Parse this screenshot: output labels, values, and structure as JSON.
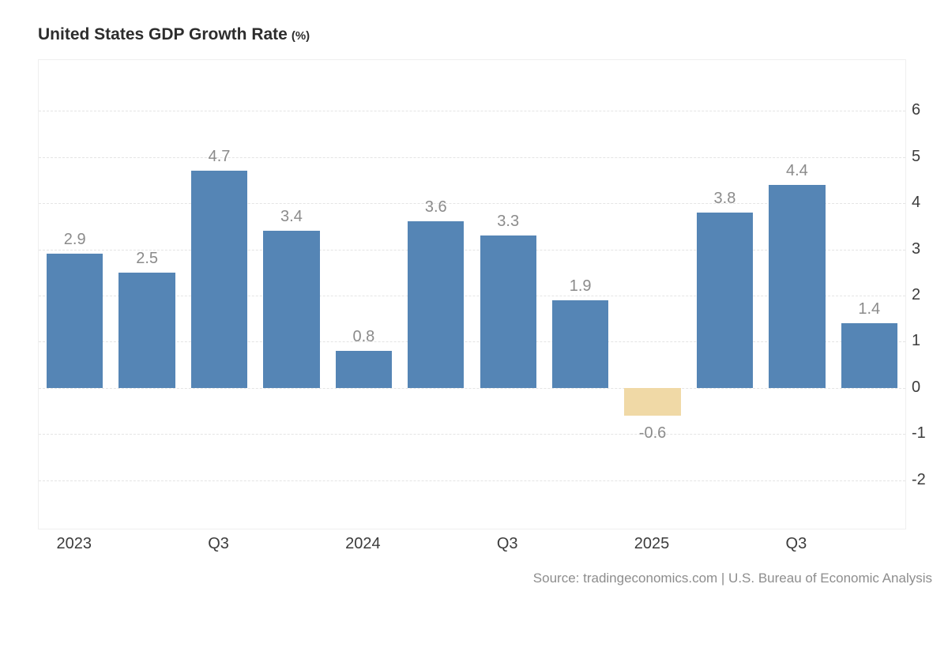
{
  "chart_data": {
    "type": "bar",
    "title": "United States GDP Growth Rate",
    "title_suffix": "(%)",
    "source": "Source: tradingeconomics.com | U.S. Bureau of Economic Analysis",
    "values": [
      2.9,
      2.5,
      4.7,
      3.4,
      0.8,
      3.6,
      3.3,
      1.9,
      -0.6,
      3.8,
      4.4,
      1.4
    ],
    "bar_labels": [
      "2.9",
      "2.5",
      "4.7",
      "3.4",
      "0.8",
      "3.6",
      "3.3",
      "1.9",
      "-0.6",
      "3.8",
      "4.4",
      "1.4"
    ],
    "highlight_index": 8,
    "x_tick_labels": [
      {
        "index": 0,
        "label": "2023"
      },
      {
        "index": 2,
        "label": "Q3"
      },
      {
        "index": 4,
        "label": "2024"
      },
      {
        "index": 6,
        "label": "Q3"
      },
      {
        "index": 8,
        "label": "2025"
      },
      {
        "index": 10,
        "label": "Q3"
      }
    ],
    "y_ticks": [
      6,
      5,
      4,
      3,
      2,
      1,
      0,
      -1,
      -2
    ],
    "ylim": [
      -3.05,
      7.1
    ],
    "grid": true,
    "legend": "none",
    "colors": {
      "bar": "#5585b5",
      "highlight": "#f0d9a6",
      "grid": "#e4e4e4",
      "value_label": "#8b8b8b",
      "axis_label": "#3c3c3c"
    }
  }
}
